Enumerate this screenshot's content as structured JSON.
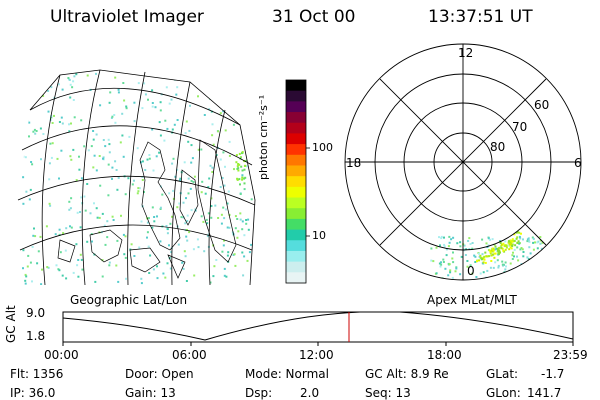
{
  "header": {
    "title": "Ultraviolet Imager",
    "date": "31 Oct 00",
    "time": "13:37:51 UT"
  },
  "colorbar": {
    "unit_label": "photon cm⁻²s⁻¹",
    "ticks": [
      "100",
      "10"
    ],
    "colors": [
      "#000000",
      "#2a0a33",
      "#550055",
      "#880033",
      "#b3001a",
      "#dd0000",
      "#ff3300",
      "#ff7700",
      "#ffaa00",
      "#ffdd00",
      "#eeff00",
      "#bbff22",
      "#88ee33",
      "#44dd66",
      "#22ccaa",
      "#55dddd",
      "#99eeee",
      "#cceeee",
      "#e8f4f4"
    ]
  },
  "geo_map": {
    "label": "Geographic Lat/Lon"
  },
  "polar_plot": {
    "label": "Apex MLat/MLT",
    "mlt_labels": {
      "top": "12",
      "left": "18",
      "right": "6",
      "bottom": "0"
    },
    "lat_labels": [
      "60",
      "70",
      "80"
    ]
  },
  "altitude_plot": {
    "y_label": "GC Alt",
    "y_ticks": [
      "9.0",
      "1.8"
    ],
    "x_ticks": [
      "00:00",
      "06:00",
      "12:00",
      "18:00",
      "23:59"
    ],
    "marker_color": "#cc0000"
  },
  "info": {
    "flt": "Flt: 1356",
    "ip": "IP: 36.0",
    "door": "Door: Open",
    "gain": "Gain: 13",
    "mode": "Mode: Normal",
    "dsp_label": "Dsp:",
    "dsp_value": "2.0",
    "gcalt": "GC Alt: 8.9 Re",
    "seq": "Seq: 13",
    "glat_label": "GLat:",
    "glat_value": "-1.7",
    "glon_label": "GLon:",
    "glon_value": "141.7"
  }
}
